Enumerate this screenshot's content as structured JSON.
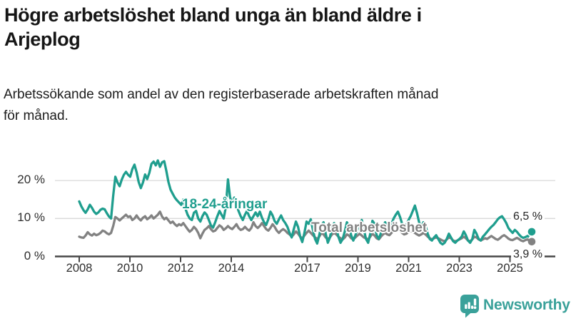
{
  "header": {
    "title": "Högre arbetslöshet bland unga än bland äldre i Arjeplog",
    "title_lines": [
      "Högre arbetslöshet bland unga än bland äldre i",
      "Arjeplog"
    ],
    "subtitle": "Arbetssökande som andel av den registerbaserade arbetskraften månad för månad.",
    "subtitle_lines": [
      "Arbetssökande som andel av den registerbaserade arbetskraften månad",
      "för månad."
    ]
  },
  "chart_data": {
    "type": "line",
    "title": "Högre arbetslöshet bland unga än bland äldre i Arjeplog",
    "subtitle": "Arbetssökande som andel av den registerbaserade arbetskraften månad för månad.",
    "unit": "%",
    "x_start": "2008-01",
    "x_end": "2025-10",
    "grid": "horizontal",
    "ylim": [
      0,
      27
    ],
    "y_ticks": [
      0,
      10,
      20
    ],
    "y_tick_labels": [
      "0 %",
      "10 %",
      "20 %"
    ],
    "x_tick_years": [
      2008,
      2010,
      2012,
      2014,
      2017,
      2019,
      2021,
      2023,
      2025
    ],
    "x_tick_labels": [
      "2008",
      "2010",
      "2012",
      "2014",
      "2017",
      "2019",
      "2021",
      "2023",
      "2025"
    ],
    "colors": {
      "youth": "#1f9e8e",
      "total": "#828282",
      "grid": "#d9d9d9",
      "axis": "#474747"
    },
    "series": [
      {
        "name": "18-24-åringar",
        "color": "#1f9e8e",
        "end_label": "6,5 %",
        "end_value": 6.5,
        "dashed_tail": 3,
        "values": [
          14.5,
          13.2,
          12.2,
          11.5,
          12.4,
          13.6,
          12.8,
          11.8,
          11.2,
          11.6,
          12.3,
          12.6,
          12.4,
          11.4,
          10.5,
          10.0,
          16.0,
          21.0,
          19.5,
          18.5,
          20.2,
          21.5,
          22.3,
          21.5,
          21.0,
          23.0,
          24.2,
          22.2,
          19.6,
          18.0,
          19.5,
          21.6,
          20.4,
          22.0,
          24.4,
          25.0,
          24.0,
          25.3,
          23.6,
          24.8,
          25.1,
          22.6,
          19.6,
          17.6,
          16.5,
          15.5,
          14.8,
          14.2,
          13.6,
          15.0,
          12.6,
          11.0,
          10.0,
          9.6,
          11.5,
          12.0,
          10.0,
          9.2,
          10.6,
          11.6,
          11.0,
          9.6,
          8.2,
          7.6,
          9.0,
          10.6,
          12.0,
          11.0,
          10.0,
          13.0,
          20.3,
          15.6,
          14.0,
          15.5,
          13.6,
          12.0,
          10.6,
          9.6,
          11.0,
          12.0,
          10.6,
          9.6,
          10.6,
          11.6,
          10.6,
          11.8,
          10.2,
          9.0,
          8.3,
          9.8,
          11.8,
          10.8,
          9.3,
          8.6,
          9.8,
          10.8,
          9.6,
          8.8,
          7.8,
          6.2,
          5.0,
          7.2,
          9.2,
          7.8,
          5.2,
          3.8,
          6.2,
          9.2,
          8.6,
          9.8,
          7.0,
          4.6,
          3.4,
          5.6,
          8.2,
          9.0,
          6.0,
          3.6,
          5.0,
          7.6,
          8.8,
          7.6,
          5.2,
          3.6,
          4.6,
          6.6,
          9.0,
          8.0,
          5.6,
          4.2,
          5.6,
          7.2,
          8.6,
          9.6,
          7.0,
          4.6,
          3.6,
          6.0,
          9.4,
          8.6,
          5.6,
          4.6,
          6.2,
          8.0,
          9.0,
          8.0,
          6.6,
          8.6,
          10.0,
          11.0,
          11.8,
          10.4,
          8.6,
          7.2,
          8.2,
          9.6,
          10.6,
          12.0,
          13.4,
          11.4,
          9.0,
          7.6,
          9.0,
          8.0,
          6.0,
          4.6,
          4.2,
          5.0,
          5.6,
          4.6,
          3.6,
          3.2,
          3.6,
          4.6,
          6.0,
          5.0,
          4.0,
          3.6,
          4.2,
          4.6,
          5.2,
          6.6,
          5.6,
          4.2,
          3.6,
          4.6,
          7.0,
          6.0,
          4.6,
          4.2,
          5.2,
          5.8,
          6.5,
          7.2,
          7.8,
          8.3,
          9.0,
          9.8,
          10.3,
          10.6,
          9.8,
          8.8,
          7.5,
          6.8,
          6.2,
          7.0,
          6.5,
          5.8,
          5.2,
          4.9,
          5.1,
          5.4,
          5.0,
          6.5
        ]
      },
      {
        "name": "Total arbetslöshet",
        "color": "#828282",
        "end_label": "3,9 %",
        "end_value": 3.9,
        "dashed_tail": 3,
        "values": [
          5.2,
          5.0,
          4.9,
          5.5,
          6.4,
          5.8,
          5.5,
          6.0,
          5.6,
          5.8,
          6.2,
          6.8,
          6.6,
          6.1,
          5.8,
          6.2,
          8.0,
          10.4,
          10.0,
          9.5,
          10.0,
          10.5,
          11.0,
          10.4,
          10.6,
          9.6,
          10.0,
          10.8,
          10.0,
          9.5,
          10.2,
          10.6,
          9.8,
          10.2,
          10.8,
          10.0,
          10.5,
          11.0,
          11.8,
          10.5,
          9.8,
          10.2,
          9.5,
          8.8,
          9.2,
          8.5,
          8.0,
          8.5,
          8.2,
          8.8,
          8.0,
          7.2,
          6.5,
          7.0,
          7.8,
          7.2,
          6.2,
          4.8,
          6.0,
          7.0,
          7.4,
          8.0,
          7.2,
          6.6,
          6.8,
          7.5,
          8.2,
          7.8,
          7.0,
          7.4,
          8.0,
          7.5,
          7.2,
          7.8,
          8.5,
          7.5,
          7.0,
          7.2,
          7.8,
          7.2,
          6.8,
          7.5,
          9.0,
          8.0,
          7.5,
          8.0,
          8.8,
          8.0,
          7.2,
          6.8,
          7.5,
          8.5,
          7.8,
          6.8,
          6.2,
          6.8,
          7.2,
          6.8,
          6.2,
          5.8,
          5.2,
          5.8,
          6.6,
          6.0,
          5.2,
          4.8,
          5.5,
          6.2,
          6.8,
          6.2,
          5.6,
          5.0,
          4.6,
          5.2,
          6.2,
          5.8,
          5.0,
          4.6,
          5.0,
          5.8,
          6.2,
          5.8,
          5.2,
          4.8,
          4.5,
          5.0,
          5.8,
          5.5,
          4.8,
          4.5,
          5.0,
          5.5,
          6.0,
          5.5,
          5.0,
          4.8,
          4.5,
          5.2,
          6.0,
          5.5,
          4.8,
          4.5,
          5.2,
          5.8,
          6.2,
          5.8,
          5.6,
          6.2,
          6.8,
          7.0,
          7.2,
          6.8,
          6.2,
          5.8,
          6.0,
          6.5,
          6.8,
          6.5,
          6.2,
          5.8,
          5.5,
          5.8,
          6.2,
          5.8,
          5.2,
          4.8,
          4.5,
          4.8,
          5.0,
          4.8,
          4.5,
          4.2,
          4.0,
          4.5,
          5.0,
          4.8,
          4.2,
          4.0,
          4.2,
          4.5,
          4.8,
          5.2,
          4.8,
          4.2,
          4.0,
          4.5,
          5.2,
          5.0,
          4.5,
          4.2,
          4.5,
          4.8,
          4.6,
          5.0,
          5.4,
          5.0,
          4.6,
          4.4,
          4.8,
          5.3,
          5.6,
          5.2,
          4.7,
          4.4,
          4.3,
          4.6,
          4.9,
          4.6,
          4.2,
          4.0,
          4.3,
          4.5,
          4.1,
          3.9
        ]
      }
    ]
  },
  "footer": {
    "brand": "Newsworthy",
    "brand_color": "#3aa19a",
    "logo_icon": "bar-chart-speech-bubble-icon"
  }
}
